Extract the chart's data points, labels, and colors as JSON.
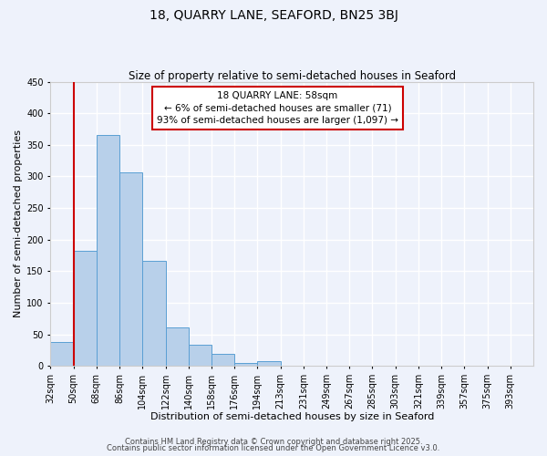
{
  "title": "18, QUARRY LANE, SEAFORD, BN25 3BJ",
  "subtitle": "Size of property relative to semi-detached houses in Seaford",
  "xlabel": "Distribution of semi-detached houses by size in Seaford",
  "ylabel": "Number of semi-detached properties",
  "bin_labels": [
    "32sqm",
    "50sqm",
    "68sqm",
    "86sqm",
    "104sqm",
    "122sqm",
    "140sqm",
    "158sqm",
    "176sqm",
    "194sqm",
    "213sqm",
    "231sqm",
    "249sqm",
    "267sqm",
    "285sqm",
    "303sqm",
    "321sqm",
    "339sqm",
    "357sqm",
    "375sqm",
    "393sqm"
  ],
  "bar_values": [
    38,
    183,
    365,
    307,
    167,
    61,
    34,
    19,
    5,
    8,
    0,
    0,
    0,
    0,
    0,
    0,
    0,
    0,
    0,
    0,
    0
  ],
  "bar_color": "#b8d0ea",
  "bar_edge_color": "#5a9fd4",
  "vline_x": 1,
  "vline_color": "#cc0000",
  "annotation_title": "18 QUARRY LANE: 58sqm",
  "annotation_line2": "← 6% of semi-detached houses are smaller (71)",
  "annotation_line3": "93% of semi-detached houses are larger (1,097) →",
  "annotation_box_color": "#cc0000",
  "ylim": [
    0,
    450
  ],
  "yticks": [
    0,
    50,
    100,
    150,
    200,
    250,
    300,
    350,
    400,
    450
  ],
  "footer1": "Contains HM Land Registry data © Crown copyright and database right 2025.",
  "footer2": "Contains public sector information licensed under the Open Government Licence v3.0.",
  "background_color": "#eef2fb",
  "grid_color": "#ffffff",
  "title_fontsize": 10,
  "subtitle_fontsize": 8.5,
  "axis_label_fontsize": 8,
  "tick_fontsize": 7,
  "footer_fontsize": 6,
  "annotation_fontsize": 7.5
}
